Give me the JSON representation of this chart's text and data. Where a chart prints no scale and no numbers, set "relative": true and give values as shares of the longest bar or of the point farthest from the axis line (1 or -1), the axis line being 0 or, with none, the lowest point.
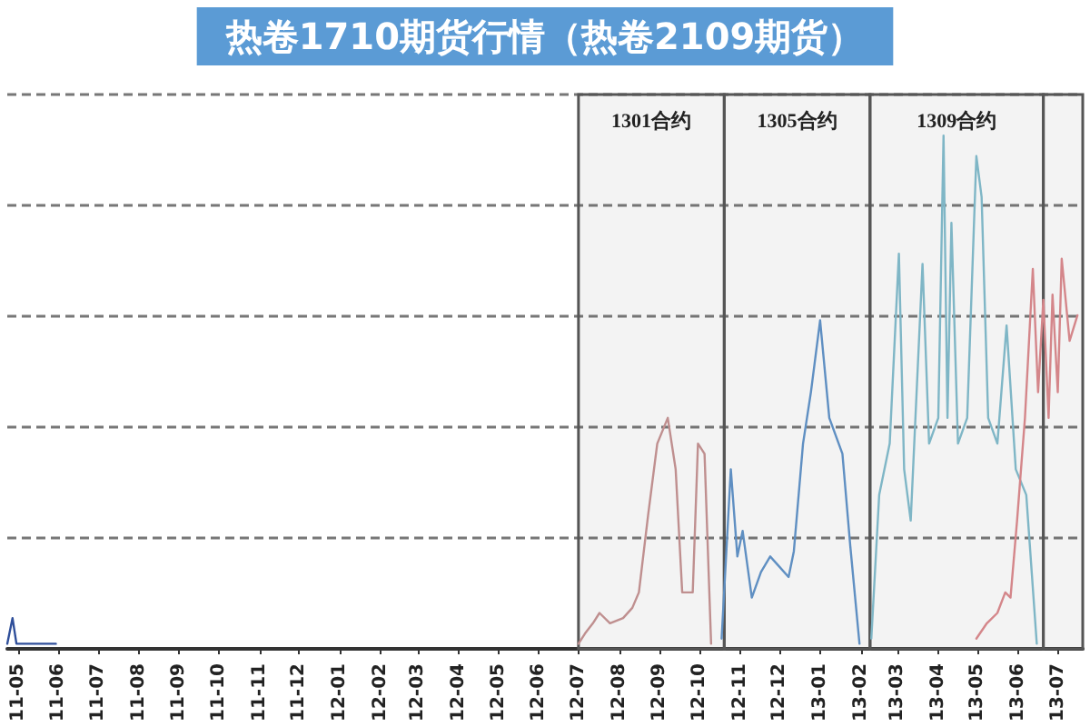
{
  "chart_data": {
    "type": "line",
    "title": "热卷1710期货行情（热卷2109期货）",
    "relative": true,
    "grid": "y",
    "xlim": [
      "2011-04-23",
      "2013-07-20"
    ],
    "xticks": [
      {
        "value": "2011-05",
        "label": "11-05"
      },
      {
        "value": "2011-06",
        "label": "11-06"
      },
      {
        "value": "2011-07",
        "label": "11-07"
      },
      {
        "value": "2011-08",
        "label": "11-08"
      },
      {
        "value": "2011-09",
        "label": "11-09"
      },
      {
        "value": "2011-10",
        "label": "11-10"
      },
      {
        "value": "2011-11",
        "label": "11-11"
      },
      {
        "value": "2011-12",
        "label": "11-12"
      },
      {
        "value": "2012-01",
        "label": "12-01"
      },
      {
        "value": "2012-02",
        "label": "12-02"
      },
      {
        "value": "2012-03",
        "label": "12-03"
      },
      {
        "value": "2012-04",
        "label": "12-04"
      },
      {
        "value": "2012-05",
        "label": "12-05"
      },
      {
        "value": "2012-06",
        "label": "12-06"
      },
      {
        "value": "2012-07",
        "label": "12-07"
      },
      {
        "value": "2012-08",
        "label": "12-08"
      },
      {
        "value": "2012-09",
        "label": "12-09"
      },
      {
        "value": "2012-10",
        "label": "12-10"
      },
      {
        "value": "2012-11",
        "label": "12-11"
      },
      {
        "value": "2012-12",
        "label": "12-12"
      },
      {
        "value": "2013-01",
        "label": "13-01"
      },
      {
        "value": "2013-02",
        "label": "13-02"
      },
      {
        "value": "2013-03",
        "label": "13-03"
      },
      {
        "value": "2013-04",
        "label": "13-04"
      },
      {
        "value": "2013-05",
        "label": "13-05"
      },
      {
        "value": "2013-06",
        "label": "13-06"
      },
      {
        "value": "2013-07",
        "label": "13-07"
      }
    ],
    "bands": [
      {
        "axis": "x",
        "from": "2012-07-01",
        "to": "2012-10-20",
        "label": "1301合约",
        "color": "#555555"
      },
      {
        "axis": "x",
        "from": "2012-10-20",
        "to": "2013-02-08",
        "label": "1305合约",
        "color": "#555555"
      },
      {
        "axis": "x",
        "from": "2013-02-08",
        "to": "2013-06-20",
        "label": "1309合约",
        "color": "#555555"
      },
      {
        "axis": "x",
        "from": "2013-06-20",
        "to": "2013-07-20",
        "color": "#555555"
      }
    ],
    "series": [
      {
        "color": "#2f4f9a",
        "x": [
          "2011-04-23",
          "2011-04-27",
          "2011-04-30",
          "2011-05-30"
        ],
        "values": [
          0.01,
          0.06,
          0.01,
          0.01
        ]
      },
      {
        "color": "#bf8f8f",
        "x": [
          "2012-07-01",
          "2012-07-06",
          "2012-07-12",
          "2012-07-17",
          "2012-07-25",
          "2012-08-04",
          "2012-08-11",
          "2012-08-16",
          "2012-08-23",
          "2012-08-30",
          "2012-09-07",
          "2012-09-13",
          "2012-09-18",
          "2012-09-26",
          "2012-09-30",
          "2012-10-05",
          "2012-10-10"
        ],
        "values": [
          0.01,
          0.03,
          0.05,
          0.07,
          0.05,
          0.06,
          0.08,
          0.11,
          0.26,
          0.4,
          0.45,
          0.35,
          0.11,
          0.11,
          0.4,
          0.38,
          0.01
        ]
      },
      {
        "color": "#5f8fc2",
        "x": [
          "2012-10-18",
          "2012-10-25",
          "2012-10-30",
          "2012-11-03",
          "2012-11-10",
          "2012-11-17",
          "2012-11-24",
          "2012-12-01",
          "2012-12-08",
          "2012-12-12",
          "2012-12-19",
          "2012-12-25",
          "2013-01-01",
          "2013-01-08",
          "2013-01-18",
          "2013-01-24",
          "2013-01-31"
        ],
        "values": [
          0.02,
          0.35,
          0.18,
          0.23,
          0.1,
          0.15,
          0.18,
          0.16,
          0.14,
          0.19,
          0.4,
          0.5,
          0.64,
          0.45,
          0.38,
          0.2,
          0.01
        ]
      },
      {
        "color": "#7fb6c6",
        "x": [
          "2013-02-09",
          "2013-02-15",
          "2013-02-23",
          "2013-03-02",
          "2013-03-06",
          "2013-03-11",
          "2013-03-20",
          "2013-03-25",
          "2013-04-01",
          "2013-04-05",
          "2013-04-08",
          "2013-04-11",
          "2013-04-16",
          "2013-04-23",
          "2013-04-30",
          "2013-05-04",
          "2013-05-09",
          "2013-05-16",
          "2013-05-23",
          "2013-05-30",
          "2013-06-07",
          "2013-06-15"
        ],
        "values": [
          0.02,
          0.3,
          0.4,
          0.77,
          0.35,
          0.25,
          0.75,
          0.4,
          0.45,
          1,
          0.45,
          0.83,
          0.4,
          0.45,
          0.96,
          0.88,
          0.45,
          0.4,
          0.63,
          0.35,
          0.3,
          0.01
        ]
      },
      {
        "color": "#d4868a",
        "x": [
          "2013-04-30",
          "2013-05-08",
          "2013-05-16",
          "2013-05-22",
          "2013-05-26",
          "2013-05-31",
          "2013-06-06",
          "2013-06-12",
          "2013-06-16",
          "2013-06-20",
          "2013-06-24",
          "2013-06-27",
          "2013-07-01",
          "2013-07-04",
          "2013-07-10",
          "2013-07-16"
        ],
        "values": [
          0.02,
          0.05,
          0.07,
          0.11,
          0.1,
          0.25,
          0.45,
          0.74,
          0.5,
          0.68,
          0.45,
          0.69,
          0.5,
          0.76,
          0.6,
          0.65
        ]
      }
    ]
  }
}
